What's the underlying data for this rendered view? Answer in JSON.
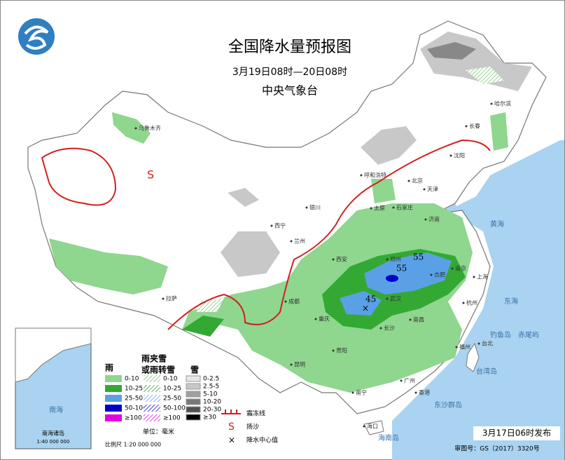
{
  "header": {
    "title": "全国降水量预报图",
    "period": "3月19日08时—20日08时",
    "issuer": "中央气象台"
  },
  "map_values": [
    55,
    55,
    45
  ],
  "cities": [
    "乌鲁木齐",
    "拉萨",
    "西宁",
    "兰州",
    "银川",
    "呼和浩特",
    "太原",
    "石家庄",
    "北京",
    "天津",
    "济南",
    "郑州",
    "西安",
    "成都",
    "重庆",
    "贵阳",
    "昆明",
    "武汉",
    "长沙",
    "南昌",
    "合肥",
    "南京",
    "上海",
    "杭州",
    "福州",
    "广州",
    "南宁",
    "海口",
    "台北",
    "沈阳",
    "长春",
    "哈尔滨",
    "香港"
  ],
  "seas": [
    "黄海",
    "东海",
    "南海",
    "台湾岛",
    "钓鱼岛",
    "赤尾屿",
    "东沙群岛",
    "海南岛"
  ],
  "legend": {
    "rain": {
      "title": "雨",
      "items": [
        "0-10",
        "10-25",
        "25-50",
        "50-100",
        "≥100"
      ]
    },
    "sleet": {
      "title": [
        "雨夹雪",
        "或雨转雪"
      ],
      "items": [
        "0-10",
        "10-25",
        "25-50",
        "50-100",
        "≥100"
      ]
    },
    "snow": {
      "title": "雪",
      "items": [
        "0-2.5",
        "2.5-5",
        "5-10",
        "10-20",
        "20-30",
        "≥30"
      ]
    },
    "unit": "单位：毫米",
    "symbols": [
      "霜冻线",
      "扬沙",
      "降水中心值"
    ]
  },
  "inset": {
    "title": "南海诸岛",
    "scale": "1:40 000 000"
  },
  "scale": "比例尺 1:20 000 000",
  "issued": "3月17日06时发布",
  "approval": "审图号：GS（2017）3320号"
}
